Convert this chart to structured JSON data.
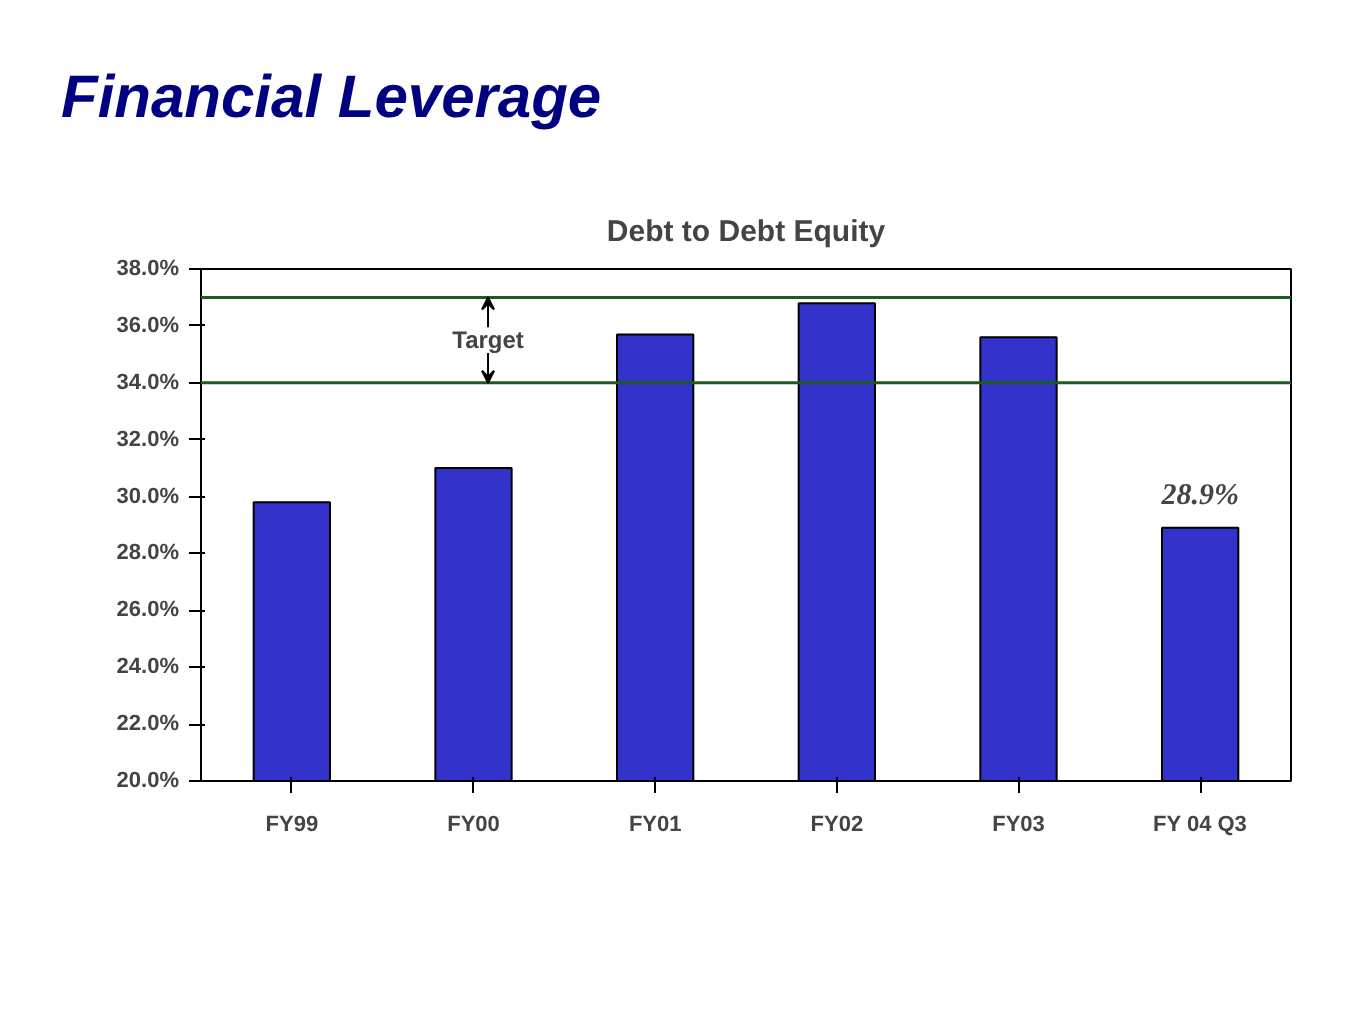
{
  "chart_data": {
    "type": "bar",
    "title": "Financial Leverage",
    "subtitle": "Debt to Debt Equity",
    "categories": [
      "FY99",
      "FY00",
      "FY01",
      "FY02",
      "FY03",
      "FY 04 Q3"
    ],
    "values": [
      29.8,
      31.0,
      35.7,
      36.8,
      35.6,
      28.9
    ],
    "value_labels": [
      null,
      null,
      null,
      null,
      null,
      "28.9%"
    ],
    "color": "#3333cc",
    "ylim": [
      20,
      38
    ],
    "yticks": [
      {
        "value": 20,
        "label": "20.0%"
      },
      {
        "value": 22,
        "label": "22.0%"
      },
      {
        "value": 24,
        "label": "24.0%"
      },
      {
        "value": 26,
        "label": "26.0%"
      },
      {
        "value": 28,
        "label": "28.0%"
      },
      {
        "value": 30,
        "label": "30.0%"
      },
      {
        "value": 32,
        "label": "32.0%"
      },
      {
        "value": 34,
        "label": "34.0%"
      },
      {
        "value": 36,
        "label": "36.0%"
      },
      {
        "value": 38,
        "label": "38.0%"
      }
    ],
    "ref_lines": [
      {
        "axis": "y",
        "value": 37,
        "label": null,
        "color": "#1e5b1e"
      },
      {
        "axis": "y",
        "value": 34,
        "label": null,
        "color": "#1e5b1e"
      }
    ],
    "annotations": [
      "Target"
    ],
    "grid": false
  }
}
